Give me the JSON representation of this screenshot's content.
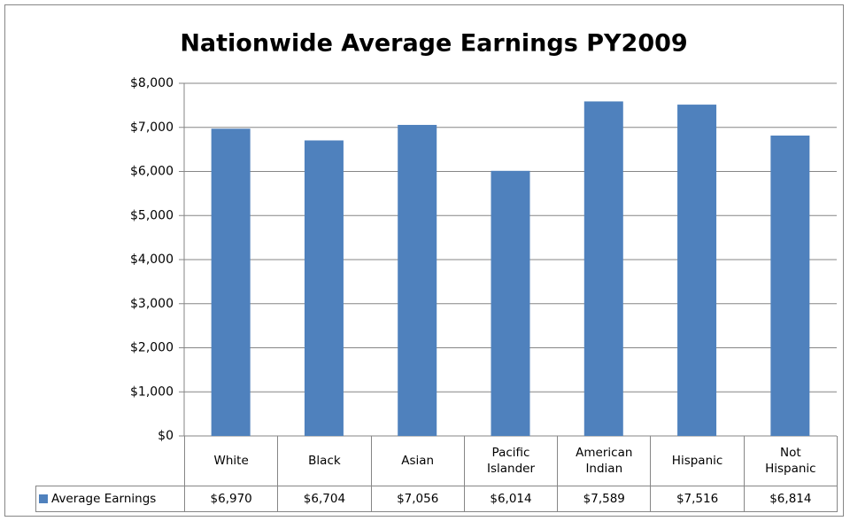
{
  "chart_data": {
    "type": "bar",
    "title": "Nationwide Average Earnings PY2009",
    "categories": [
      "White",
      "Black",
      "Asian",
      "Pacific Islander",
      "American Indian",
      "Hispanic",
      "Not Hispanic"
    ],
    "series": [
      {
        "name": "Average Earnings",
        "color": "#4f81bd",
        "values": [
          6970,
          6704,
          7056,
          6014,
          7589,
          7516,
          6814
        ],
        "value_labels": [
          "$6,970",
          "$6,704",
          "$7,056",
          "$6,014",
          "$7,589",
          "$7,516",
          "$6,814"
        ]
      }
    ],
    "ylim": [
      0,
      8000
    ],
    "yticks": [
      {
        "value": 0,
        "label": "$0"
      },
      {
        "value": 1000,
        "label": "$1,000"
      },
      {
        "value": 2000,
        "label": "$2,000"
      },
      {
        "value": 3000,
        "label": "$3,000"
      },
      {
        "value": 4000,
        "label": "$4,000"
      },
      {
        "value": 5000,
        "label": "$5,000"
      },
      {
        "value": 6000,
        "label": "$6,000"
      },
      {
        "value": 7000,
        "label": "$7,000"
      },
      {
        "value": 8000,
        "label": "$8,000"
      }
    ],
    "grid": true,
    "data_table": true
  }
}
